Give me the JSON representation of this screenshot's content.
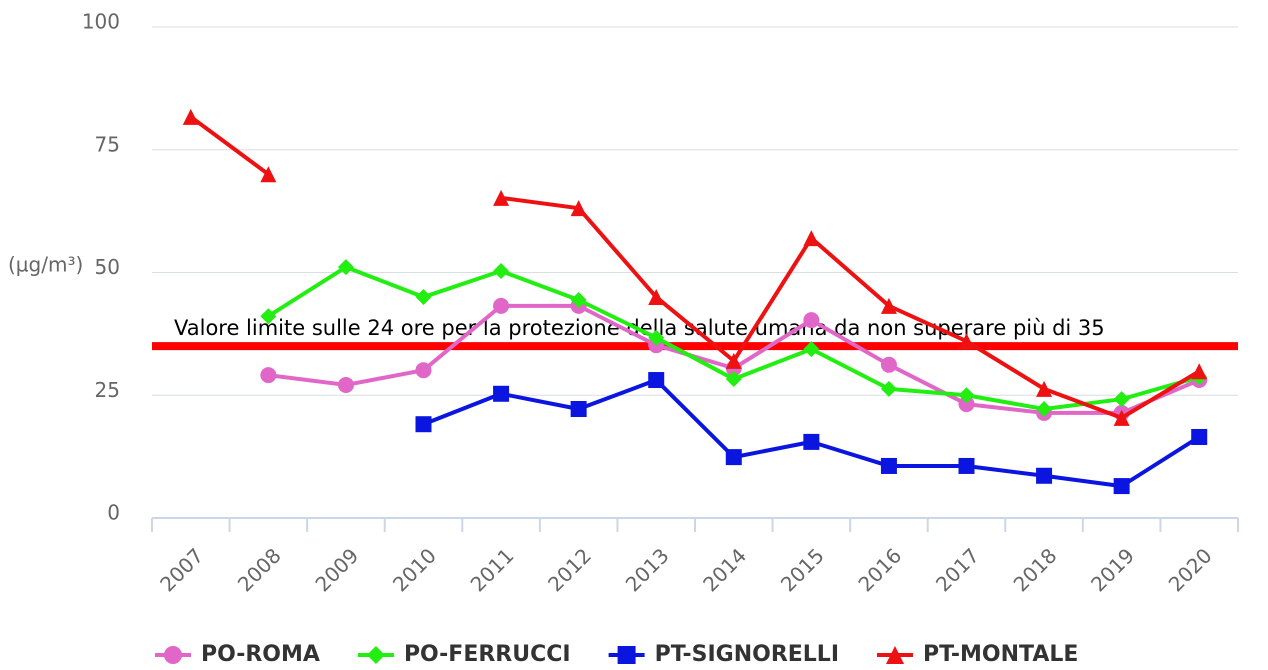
{
  "chart_data": {
    "type": "line",
    "ylabel": "(µg/m³)",
    "categories": [
      "2007",
      "2008",
      "2009",
      "2010",
      "2011",
      "2012",
      "2013",
      "2014",
      "2015",
      "2016",
      "2017",
      "2018",
      "2019",
      "2020"
    ],
    "series": [
      {
        "name": "PO-ROMA",
        "color": "#e066c8",
        "marker": "circle",
        "values": [
          null,
          29.1,
          27.1,
          30.1,
          43.2,
          43.2,
          35.2,
          30.5,
          40.3,
          31.2,
          23.2,
          21.4,
          21.4,
          28.1
        ]
      },
      {
        "name": "PO-FERRUCCI",
        "color": "#22ee11",
        "marker": "diamond",
        "values": [
          null,
          41.1,
          51.1,
          45,
          50.3,
          44.4,
          36.7,
          28.3,
          34.4,
          26.3,
          25,
          22.2,
          24.2,
          28.7
        ]
      },
      {
        "name": "PT-SIGNORELLI",
        "color": "#0a16e0",
        "marker": "square",
        "values": [
          null,
          null,
          null,
          19.1,
          25.3,
          22.2,
          28.1,
          12.4,
          15.5,
          10.6,
          10.6,
          8.6,
          6.5,
          16.5
        ]
      },
      {
        "name": "PT-MONTALE",
        "color": "#ee1111",
        "marker": "triangle",
        "values": [
          81.7,
          70,
          null,
          null,
          65.2,
          63.1,
          45,
          32,
          57,
          43.2,
          36,
          26.3,
          20.4,
          29.9
        ]
      }
    ],
    "plot_lines": [
      {
        "value": 35,
        "label": "Valore limite sulle 24 ore per la protezione della salute umana da non superare più di 35",
        "color": "#ff0000"
      }
    ],
    "ylim": [
      0,
      100
    ],
    "yticks": [
      0,
      25,
      50,
      75,
      100
    ],
    "grid": true,
    "legend": "bottom"
  }
}
